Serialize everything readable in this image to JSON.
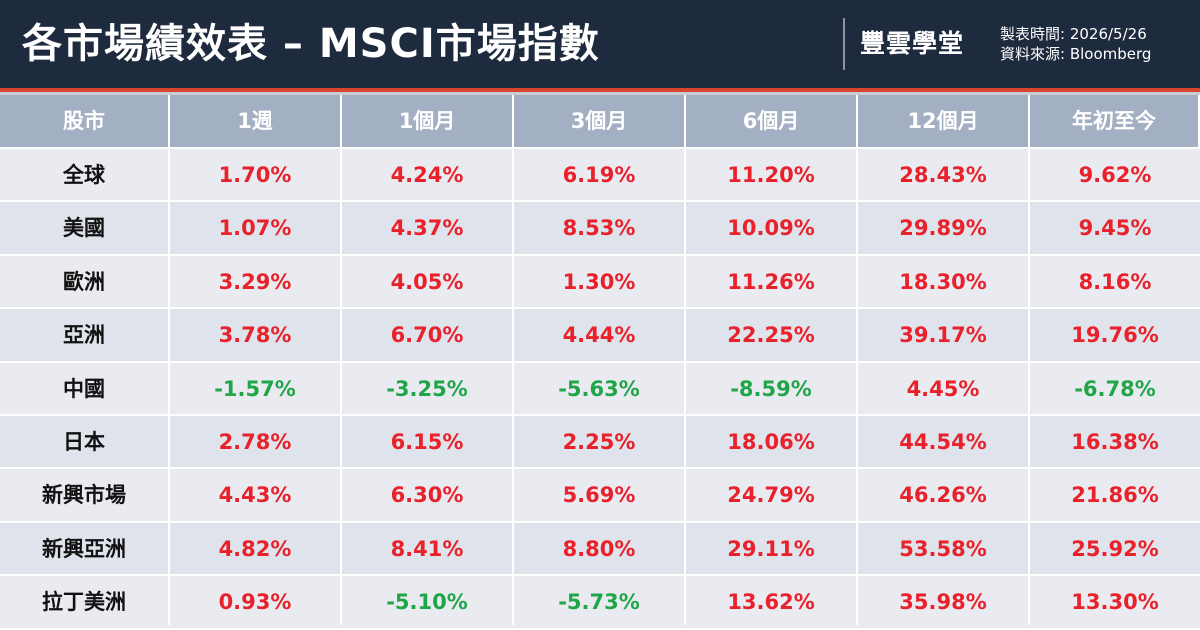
{
  "header": {
    "title": "各市場績效表 – MSCI市場指數",
    "brand": "豐雲學堂",
    "date_line": "製表時間:  2026/5/26",
    "source_line": "資料來源:  Bloomberg"
  },
  "colors": {
    "header_bg": "#1e2a3d",
    "accent_line": "#d8442f",
    "table_header_bg": "#a3afc2",
    "positive": "#e8212b",
    "negative": "#20a548"
  },
  "chart_data": {
    "type": "table",
    "columns": [
      "股市",
      "1週",
      "1個月",
      "3個月",
      "6個月",
      "12個月",
      "年初至今"
    ],
    "rows": [
      {
        "market": "全球",
        "values": [
          "1.70%",
          "4.24%",
          "6.19%",
          "11.20%",
          "28.43%",
          "9.62%"
        ]
      },
      {
        "market": "美國",
        "values": [
          "1.07%",
          "4.37%",
          "8.53%",
          "10.09%",
          "29.89%",
          "9.45%"
        ]
      },
      {
        "market": "歐洲",
        "values": [
          "3.29%",
          "4.05%",
          "1.30%",
          "11.26%",
          "18.30%",
          "8.16%"
        ]
      },
      {
        "market": "亞洲",
        "values": [
          "3.78%",
          "6.70%",
          "4.44%",
          "22.25%",
          "39.17%",
          "19.76%"
        ]
      },
      {
        "market": "中國",
        "values": [
          "-1.57%",
          "-3.25%",
          "-5.63%",
          "-8.59%",
          "4.45%",
          "-6.78%"
        ]
      },
      {
        "market": "日本",
        "values": [
          "2.78%",
          "6.15%",
          "2.25%",
          "18.06%",
          "44.54%",
          "16.38%"
        ]
      },
      {
        "market": "新興市場",
        "values": [
          "4.43%",
          "6.30%",
          "5.69%",
          "24.79%",
          "46.26%",
          "21.86%"
        ]
      },
      {
        "market": "新興亞洲",
        "values": [
          "4.82%",
          "8.41%",
          "8.80%",
          "29.11%",
          "53.58%",
          "25.92%"
        ]
      },
      {
        "market": "拉丁美洲",
        "values": [
          "0.93%",
          "-5.10%",
          "-5.73%",
          "13.62%",
          "35.98%",
          "13.30%"
        ]
      }
    ]
  }
}
